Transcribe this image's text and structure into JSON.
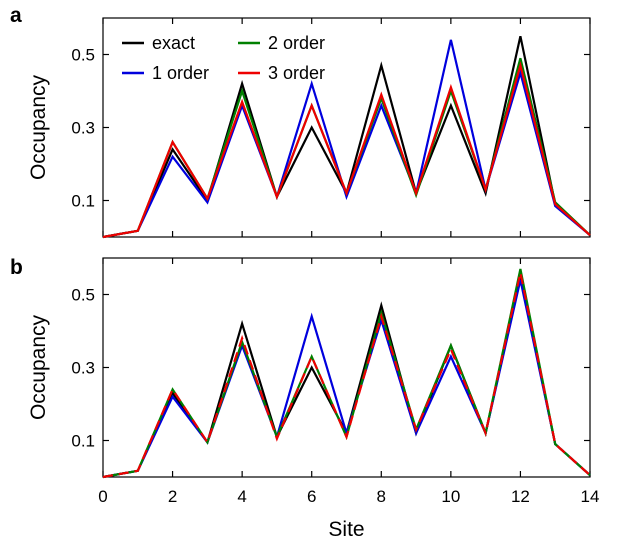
{
  "chart_data": [
    {
      "type": "line",
      "panel_label": "a",
      "ylabel": "Occupancy",
      "xlabel": "",
      "xlim": [
        0,
        14
      ],
      "ylim": [
        0,
        0.6
      ],
      "yticks": [
        "0.1",
        "0.3",
        "0.5"
      ],
      "xticks": [],
      "legend": true,
      "legend_placement": "top-left",
      "x": [
        0,
        1,
        2,
        3,
        4,
        5,
        6,
        7,
        8,
        9,
        10,
        11,
        12,
        13,
        14
      ],
      "series": [
        {
          "name": "exact",
          "color": "#000000",
          "values": [
            0.0,
            0.017,
            0.24,
            0.1,
            0.42,
            0.11,
            0.3,
            0.12,
            0.47,
            0.12,
            0.36,
            0.12,
            0.55,
            0.09,
            0.005
          ]
        },
        {
          "name": "1 order",
          "color": "#0000dd",
          "values": [
            0.0,
            0.017,
            0.22,
            0.095,
            0.36,
            0.11,
            0.42,
            0.11,
            0.36,
            0.12,
            0.54,
            0.13,
            0.45,
            0.085,
            0.005
          ]
        },
        {
          "name": "2 order",
          "color": "#008000",
          "values": [
            0.0,
            0.017,
            0.26,
            0.105,
            0.4,
            0.11,
            0.36,
            0.12,
            0.38,
            0.115,
            0.4,
            0.13,
            0.49,
            0.095,
            0.005
          ]
        },
        {
          "name": "3 order",
          "color": "#ee0000",
          "values": [
            0.0,
            0.017,
            0.26,
            0.105,
            0.37,
            0.11,
            0.36,
            0.12,
            0.39,
            0.12,
            0.41,
            0.13,
            0.47,
            0.09,
            0.005
          ]
        }
      ]
    },
    {
      "type": "line",
      "panel_label": "b",
      "ylabel": "Occupancy",
      "xlabel": "Site",
      "xlim": [
        0,
        14
      ],
      "ylim": [
        0,
        0.6
      ],
      "yticks": [
        "0.1",
        "0.3",
        "0.5"
      ],
      "xticks": [
        "0",
        "2",
        "4",
        "6",
        "8",
        "10",
        "12",
        "14"
      ],
      "legend": false,
      "x": [
        0,
        1,
        2,
        3,
        4,
        5,
        6,
        7,
        8,
        9,
        10,
        11,
        12,
        13,
        14
      ],
      "series": [
        {
          "name": "exact",
          "color": "#000000",
          "values": [
            0.0,
            0.017,
            0.23,
            0.095,
            0.42,
            0.11,
            0.3,
            0.12,
            0.47,
            0.12,
            0.36,
            0.12,
            0.55,
            0.09,
            0.005
          ]
        },
        {
          "name": "1 order",
          "color": "#0000dd",
          "values": [
            0.0,
            0.017,
            0.22,
            0.095,
            0.36,
            0.11,
            0.44,
            0.12,
            0.43,
            0.12,
            0.33,
            0.12,
            0.54,
            0.09,
            0.005
          ]
        },
        {
          "name": "2 order",
          "color": "#008000",
          "values": [
            0.0,
            0.017,
            0.24,
            0.095,
            0.37,
            0.11,
            0.33,
            0.11,
            0.45,
            0.13,
            0.36,
            0.12,
            0.57,
            0.09,
            0.005
          ]
        },
        {
          "name": "3 order",
          "color": "#ee0000",
          "values": [
            0.0,
            0.017,
            0.24,
            0.095,
            0.38,
            0.105,
            0.33,
            0.11,
            0.44,
            0.13,
            0.35,
            0.12,
            0.56,
            0.09,
            0.005
          ]
        }
      ]
    }
  ]
}
